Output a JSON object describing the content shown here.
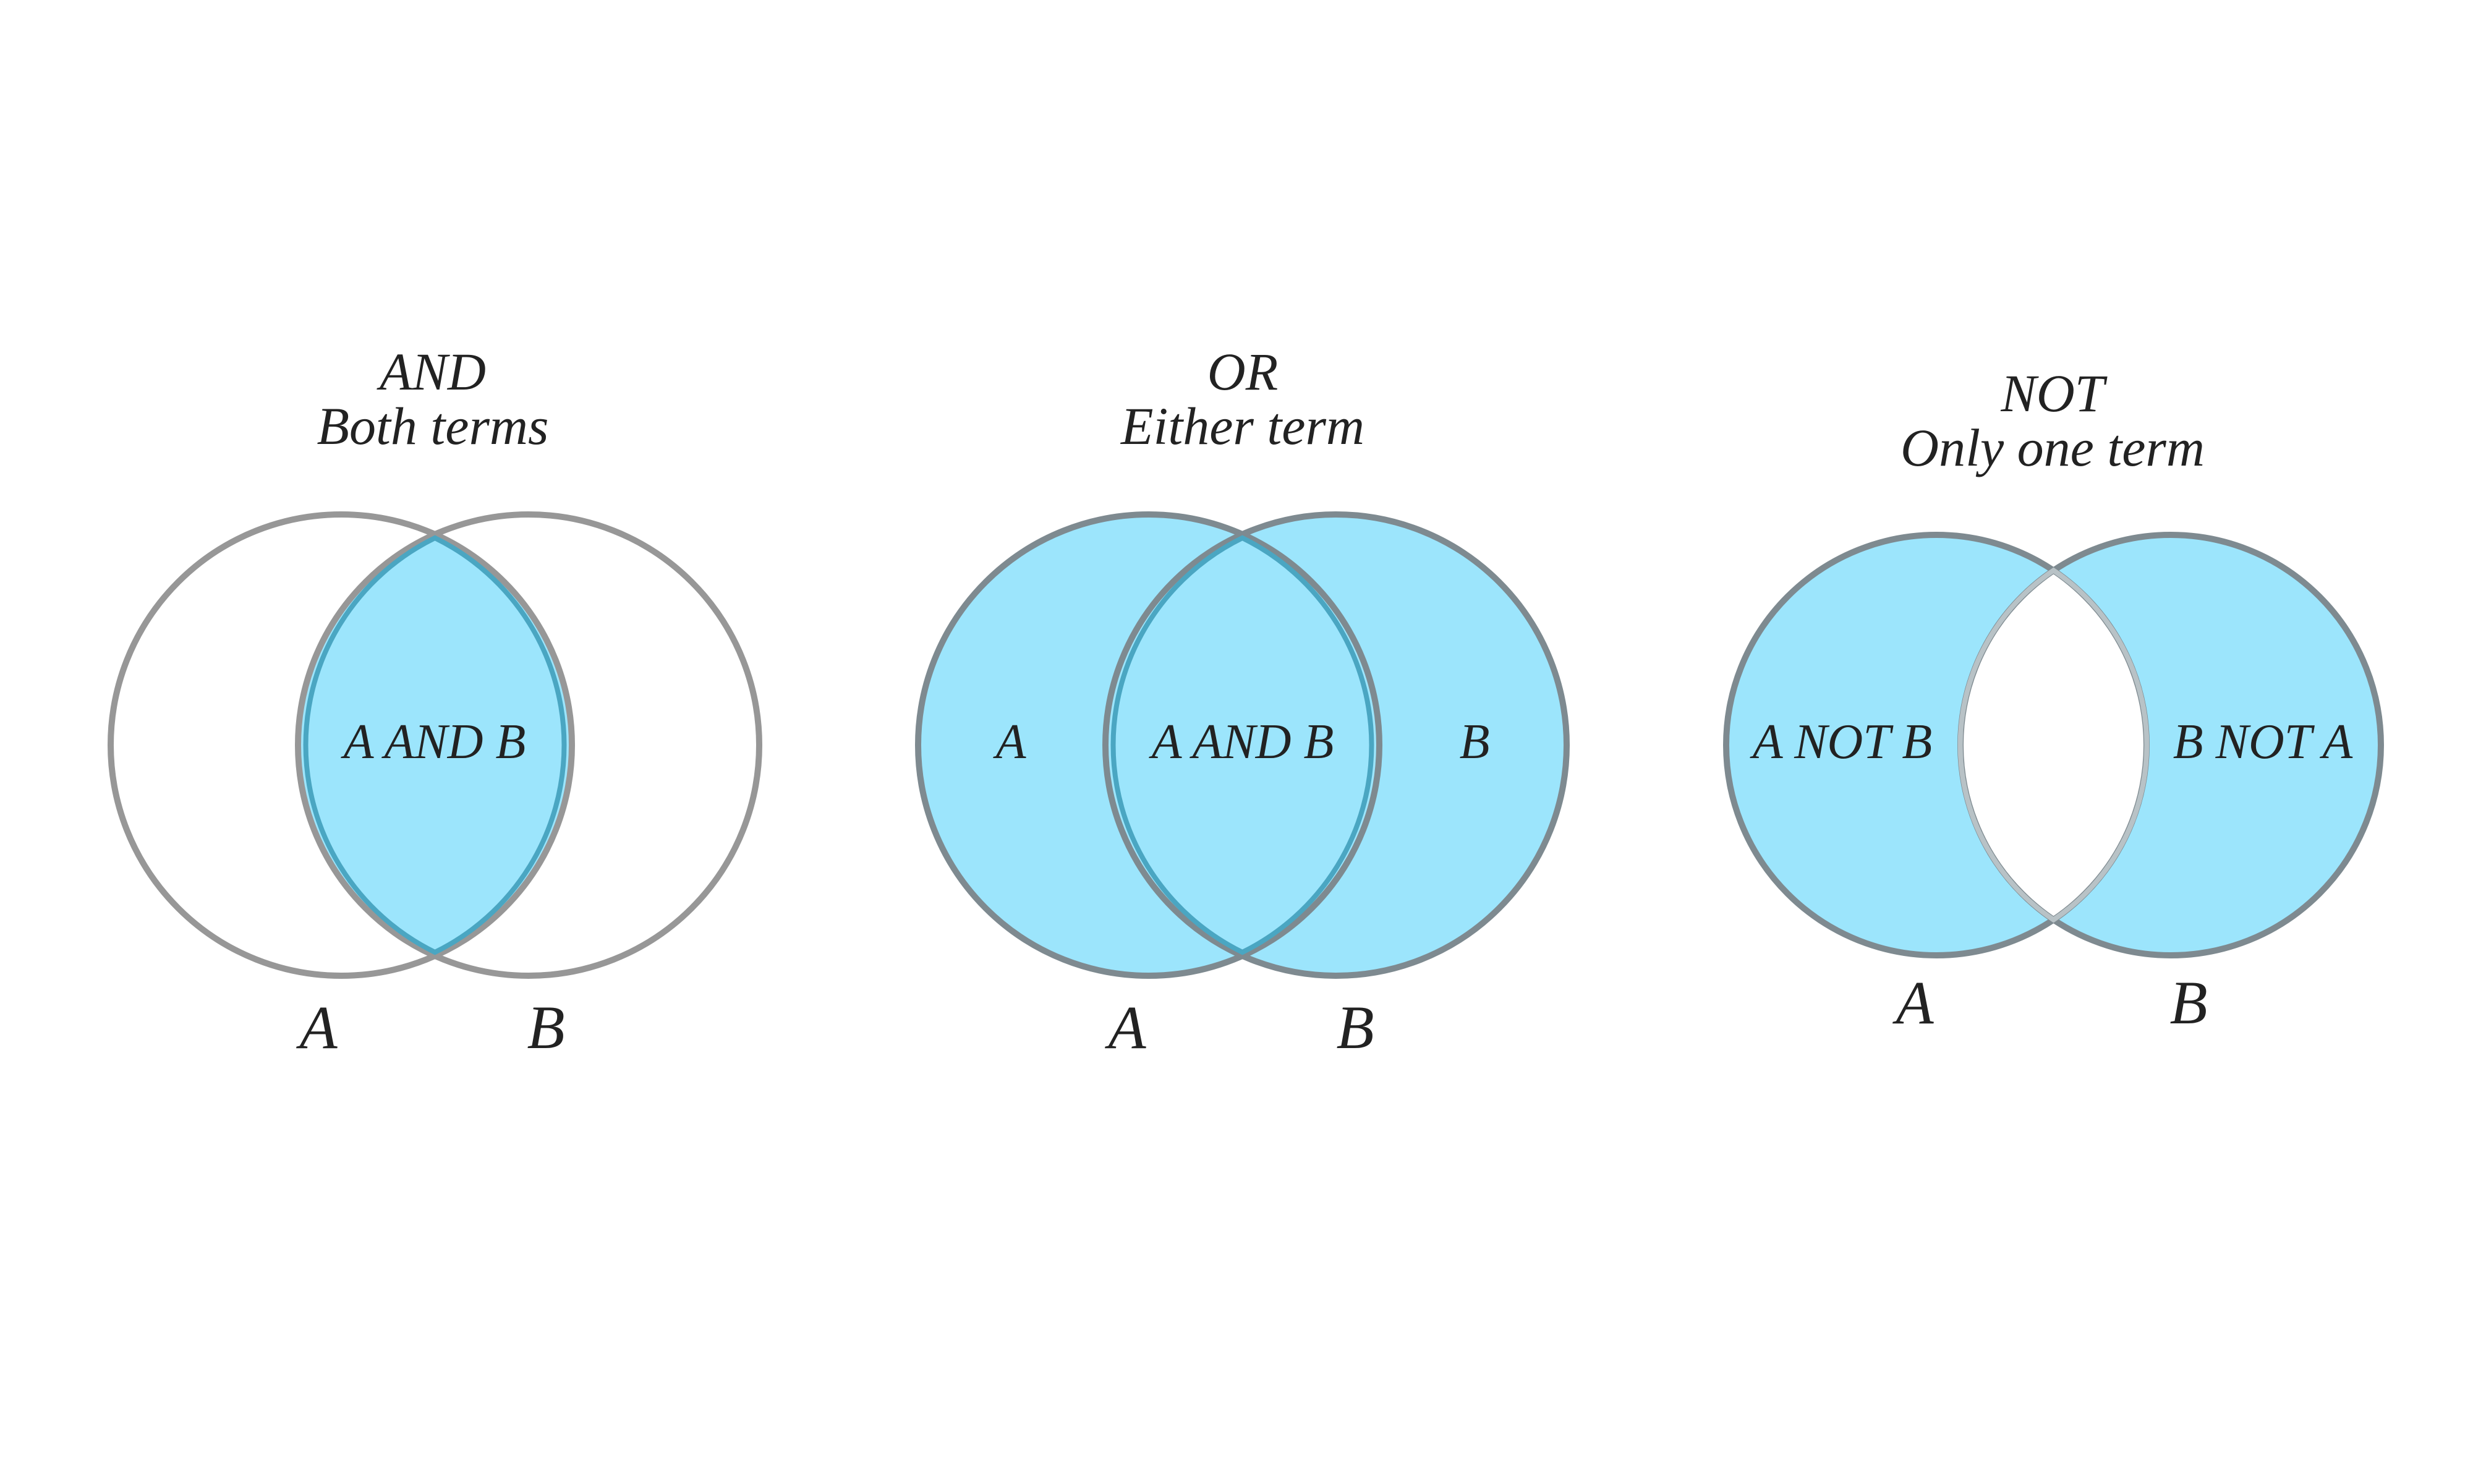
{
  "colors": {
    "fill": "#9ce5fc",
    "outline": "#979797",
    "inner_outline": "#4aa6c2",
    "text": "#222222",
    "background": "#ffffff"
  },
  "diagrams": [
    {
      "operator": "AND",
      "caption": "Both terms",
      "shaded": "intersection",
      "regions": {
        "left": "",
        "center": "A AND B",
        "right": ""
      },
      "set_labels": [
        "A",
        "B"
      ]
    },
    {
      "operator": "OR",
      "caption": "Either term",
      "shaded": "union",
      "regions": {
        "left": "A",
        "center": "A AND B",
        "right": "B"
      },
      "set_labels": [
        "A",
        "B"
      ]
    },
    {
      "operator": "NOT",
      "caption": "Only one term",
      "shaded": "symmetric-difference",
      "regions": {
        "left": "A NOT B",
        "center": "",
        "right": "B NOT A"
      },
      "set_labels": [
        "A",
        "B"
      ]
    }
  ]
}
